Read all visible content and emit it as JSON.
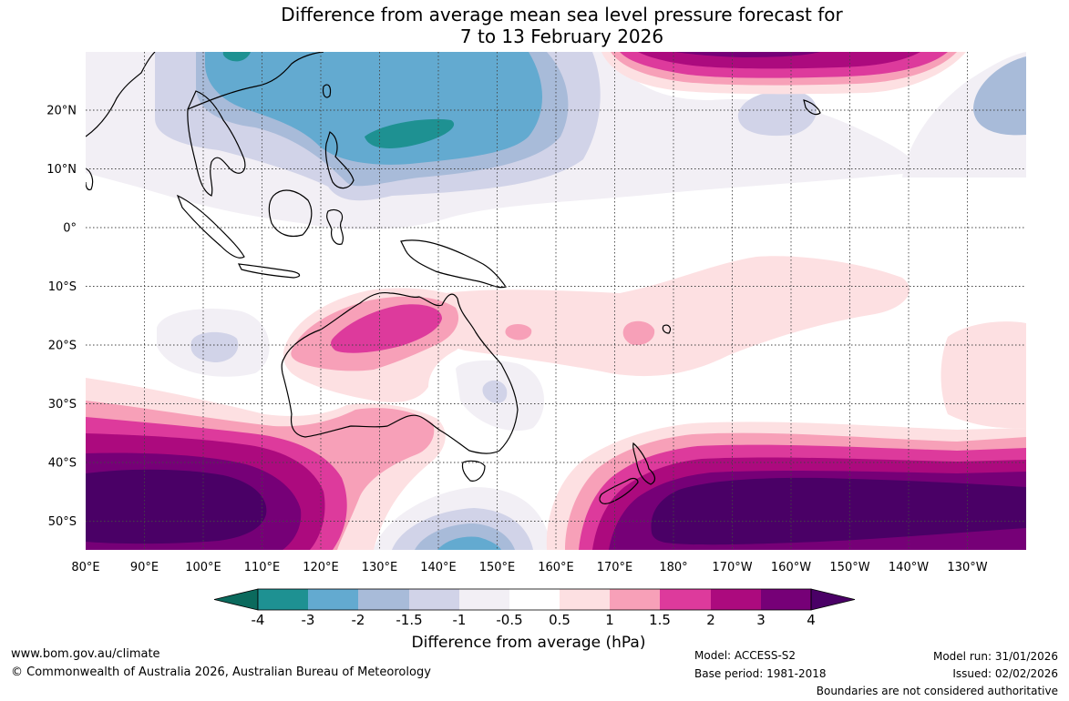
{
  "title": {
    "line1": "Difference from average mean sea level pressure forecast for",
    "line2": "7 to 13 February 2026"
  },
  "map": {
    "lon_labels": [
      "80°E",
      "90°E",
      "100°E",
      "110°E",
      "120°E",
      "130°E",
      "140°E",
      "150°E",
      "160°E",
      "170°E",
      "180°",
      "170°W",
      "160°W",
      "150°W",
      "140°W",
      "130°W"
    ],
    "lat_labels": [
      "20°N",
      "10°N",
      "0°",
      "10°S",
      "20°S",
      "30°S",
      "40°S",
      "50°S"
    ],
    "lon_range": [
      80,
      240
    ],
    "lat_range": [
      -55,
      30
    ],
    "colors": {
      "land_outline": "#000000",
      "grid": "#444444"
    }
  },
  "legend": {
    "title": "Difference from average (hPa)",
    "tick_labels": [
      "-4",
      "-3",
      "-2",
      "-1.5",
      "-1",
      "-0.5",
      "0.5",
      "1",
      "1.5",
      "2",
      "3",
      "4"
    ],
    "colors": [
      "#0b6a5d",
      "#1e9192",
      "#63aad0",
      "#a8bbd9",
      "#d1d3e8",
      "#f2eff5",
      "#ffffff",
      "#fde0e2",
      "#f7a0b8",
      "#dd3a9c",
      "#ac0a7e",
      "#760077",
      "#4a0066"
    ]
  },
  "footer": {
    "website": "www.bom.gov.au/climate",
    "copyright": "© Commonwealth of Australia 2026, Australian Bureau of Meteorology",
    "model": "Model: ACCESS-S2",
    "base_period": "Base period: 1981-2018",
    "model_run": "Model run: 31/01/2026",
    "issued": "Issued: 02/02/2026",
    "disclaimer": "Boundaries are not considered authoritative"
  }
}
